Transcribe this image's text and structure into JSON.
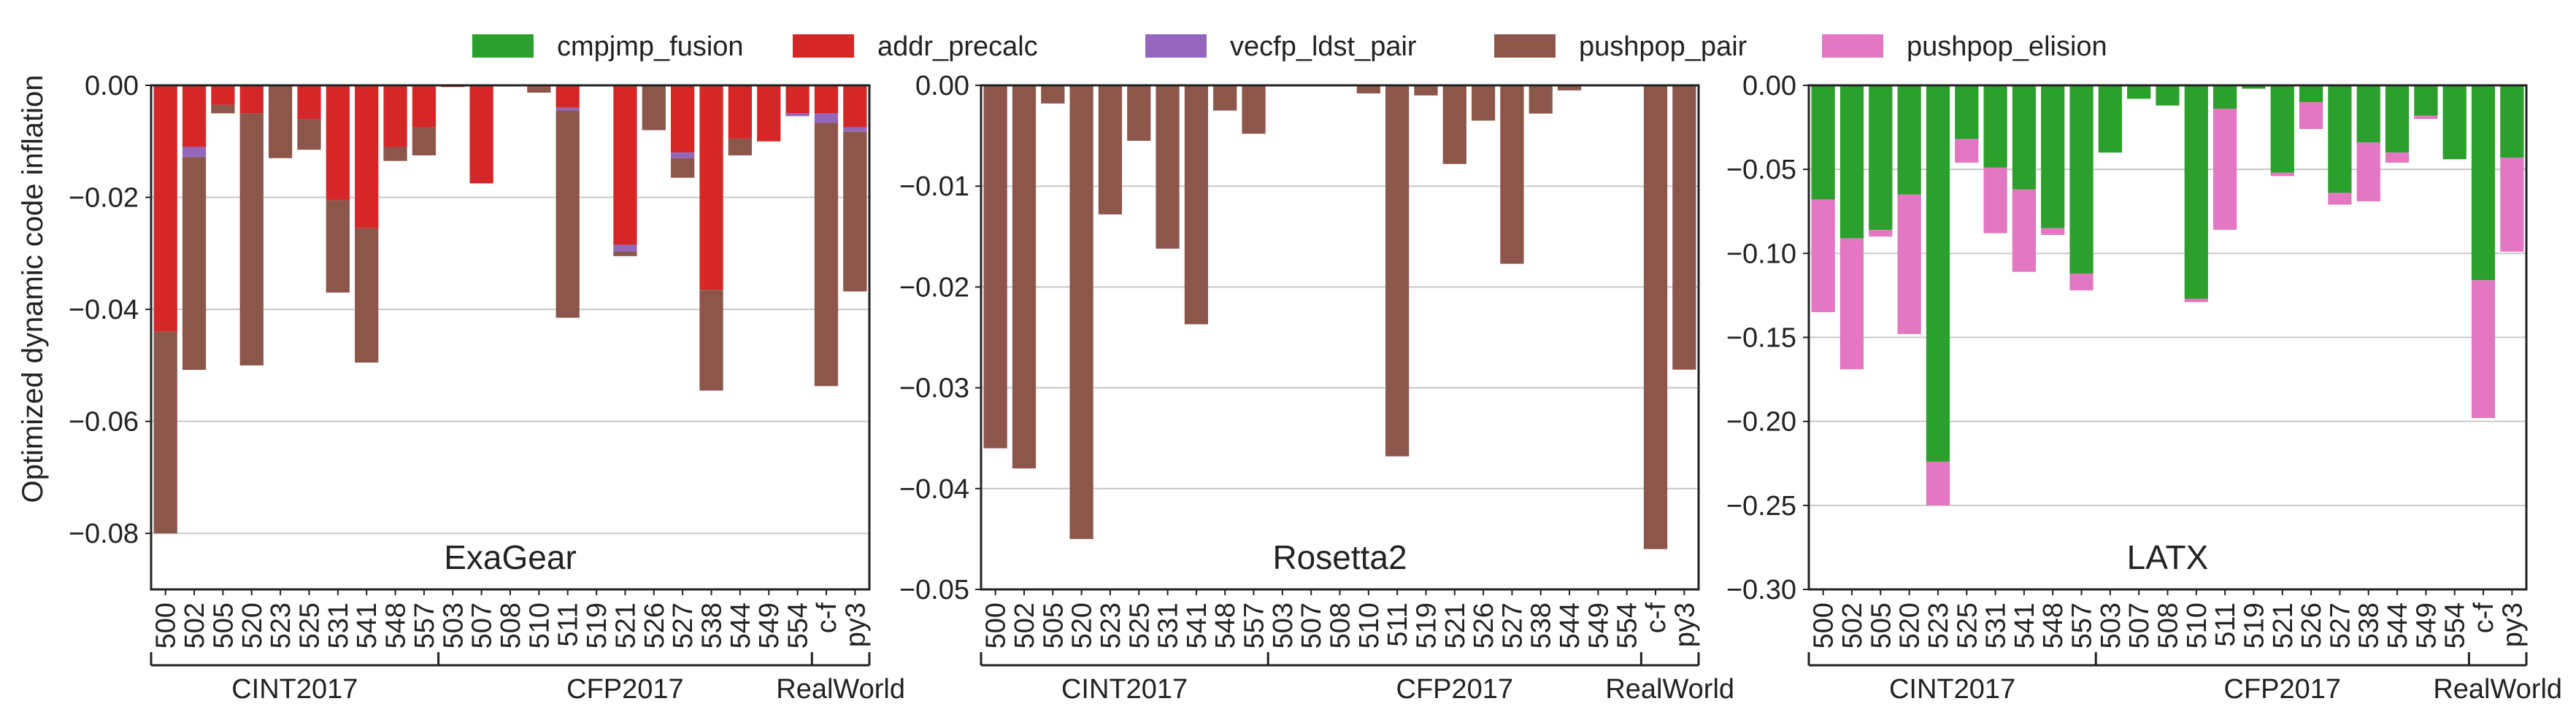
{
  "legend": [
    {
      "key": "cmpjmp_fusion",
      "label": "cmpjmp_fusion",
      "color": "#2ca02c"
    },
    {
      "key": "addr_precalc",
      "label": "addr_precalc",
      "color": "#d62728"
    },
    {
      "key": "vecfp_ldst_pair",
      "label": "vecfp_ldst_pair",
      "color": "#9467bd"
    },
    {
      "key": "pushpop_pair",
      "label": "pushpop_pair",
      "color": "#8c564b"
    },
    {
      "key": "pushpop_elision",
      "label": "pushpop_elision",
      "color": "#e377c2"
    }
  ],
  "ylabel": "Optimized dynamic code inflation",
  "chart_data": [
    {
      "type": "bar",
      "stacked": true,
      "title": "ExaGear",
      "ylabel": "Optimized dynamic code inflation",
      "ylim": [
        -0.09,
        0
      ],
      "yticks": [
        "0.00",
        "−0.02",
        "−0.04",
        "−0.06",
        "−0.08"
      ],
      "ytick_values": [
        0,
        -0.02,
        -0.04,
        -0.06,
        -0.08
      ],
      "grid": true,
      "categories": [
        "500",
        "502",
        "505",
        "520",
        "523",
        "525",
        "531",
        "541",
        "548",
        "557",
        "503",
        "507",
        "508",
        "510",
        "511",
        "519",
        "521",
        "526",
        "527",
        "538",
        "544",
        "549",
        "554",
        "c-f",
        "py3"
      ],
      "groups": [
        {
          "label": "CINT2017",
          "start": 0,
          "end": 9
        },
        {
          "label": "CFP2017",
          "start": 10,
          "end": 22
        },
        {
          "label": "RealWorld",
          "start": 23,
          "end": 24
        }
      ],
      "series": [
        {
          "name": "addr_precalc",
          "values": [
            -0.044,
            -0.011,
            -0.0035,
            -0.005,
            0,
            -0.006,
            -0.0205,
            -0.0255,
            -0.011,
            -0.0075,
            -0.0003,
            -0.0175,
            0,
            -0.0003,
            -0.004,
            0,
            -0.0285,
            0,
            -0.012,
            -0.0365,
            -0.0095,
            -0.01,
            -0.005,
            -0.005,
            -0.0075
          ]
        },
        {
          "name": "vecfp_ldst_pair",
          "values": [
            0,
            -0.0018,
            0,
            0,
            0,
            0,
            0,
            0,
            0,
            0,
            0,
            0,
            0,
            0,
            -0.0005,
            0,
            -0.0012,
            0,
            -0.001,
            0,
            0,
            0,
            -0.0005,
            -0.0017,
            -0.0008
          ]
        },
        {
          "name": "pushpop_pair",
          "values": [
            -0.036,
            -0.038,
            -0.0015,
            -0.045,
            -0.013,
            -0.0055,
            -0.0165,
            -0.024,
            -0.0025,
            -0.005,
            0,
            0,
            0,
            -0.001,
            -0.037,
            0,
            -0.0008,
            -0.008,
            -0.0035,
            -0.018,
            -0.003,
            0,
            0,
            -0.047,
            -0.0285
          ]
        }
      ]
    },
    {
      "type": "bar",
      "stacked": true,
      "title": "Rosetta2",
      "ylim": [
        -0.05,
        0
      ],
      "yticks": [
        "0.00",
        "−0.01",
        "−0.02",
        "−0.03",
        "−0.04",
        "−0.05"
      ],
      "ytick_values": [
        0,
        -0.01,
        -0.02,
        -0.03,
        -0.04,
        -0.05
      ],
      "grid": true,
      "categories": [
        "500",
        "502",
        "505",
        "520",
        "523",
        "525",
        "531",
        "541",
        "548",
        "557",
        "503",
        "507",
        "508",
        "510",
        "511",
        "519",
        "521",
        "526",
        "527",
        "538",
        "544",
        "549",
        "554",
        "c-f",
        "py3"
      ],
      "groups": [
        {
          "label": "CINT2017",
          "start": 0,
          "end": 9
        },
        {
          "label": "CFP2017",
          "start": 10,
          "end": 22
        },
        {
          "label": "RealWorld",
          "start": 23,
          "end": 24
        }
      ],
      "series": [
        {
          "name": "pushpop_pair",
          "values": [
            -0.036,
            -0.038,
            -0.0018,
            -0.045,
            -0.0128,
            -0.0055,
            -0.0162,
            -0.0237,
            -0.0025,
            -0.0048,
            0,
            0,
            0,
            -0.0008,
            -0.0368,
            -0.001,
            -0.0078,
            -0.0035,
            -0.0177,
            -0.0028,
            -0.0005,
            0,
            0,
            -0.046,
            -0.0282
          ]
        }
      ]
    },
    {
      "type": "bar",
      "stacked": true,
      "title": "LATX",
      "ylim": [
        -0.3,
        0
      ],
      "yticks": [
        "0.00",
        "−0.05",
        "−0.10",
        "−0.15",
        "−0.20",
        "−0.25",
        "−0.30"
      ],
      "ytick_values": [
        0,
        -0.05,
        -0.1,
        -0.15,
        -0.2,
        -0.25,
        -0.3
      ],
      "grid": true,
      "categories": [
        "500",
        "502",
        "505",
        "520",
        "523",
        "525",
        "531",
        "541",
        "548",
        "557",
        "503",
        "507",
        "508",
        "510",
        "511",
        "519",
        "521",
        "526",
        "527",
        "538",
        "544",
        "549",
        "554",
        "c-f",
        "py3"
      ],
      "groups": [
        {
          "label": "CINT2017",
          "start": 0,
          "end": 9
        },
        {
          "label": "CFP2017",
          "start": 10,
          "end": 22
        },
        {
          "label": "RealWorld",
          "start": 23,
          "end": 24
        }
      ],
      "series": [
        {
          "name": "cmpjmp_fusion",
          "values": [
            -0.068,
            -0.091,
            -0.086,
            -0.065,
            -0.224,
            -0.032,
            -0.049,
            -0.062,
            -0.085,
            -0.112,
            -0.04,
            -0.008,
            -0.012,
            -0.127,
            -0.014,
            -0.002,
            -0.052,
            -0.01,
            -0.064,
            -0.034,
            -0.04,
            -0.018,
            -0.044,
            -0.116,
            -0.043
          ]
        },
        {
          "name": "pushpop_elision",
          "values": [
            -0.067,
            -0.078,
            -0.004,
            -0.083,
            -0.026,
            -0.014,
            -0.039,
            -0.049,
            -0.004,
            -0.01,
            0,
            0,
            0,
            -0.002,
            -0.072,
            0,
            -0.002,
            -0.016,
            -0.007,
            -0.035,
            -0.006,
            -0.002,
            0,
            -0.082,
            -0.056
          ]
        }
      ]
    }
  ]
}
